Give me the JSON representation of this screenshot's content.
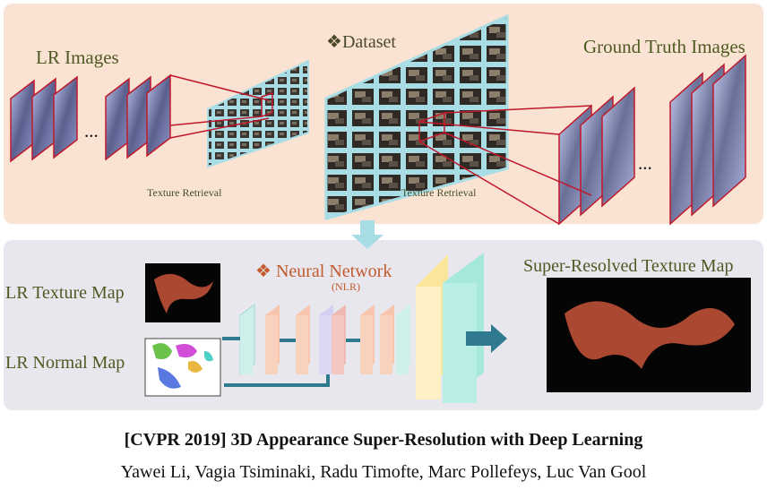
{
  "figure": {
    "dataset_label": "Dataset",
    "dataset_bullet": "❖",
    "lr_images_label": "LR Images",
    "ground_truth_label": "Ground Truth Images",
    "texture_retrieval_left": "Texture Retrieval",
    "texture_retrieval_right": "Texture Retrieval",
    "ellipsis": "...",
    "neural_network_label": "Neural Network",
    "neural_network_bullet": "❖",
    "neural_network_sub": "(NLR)",
    "lr_texture_map_label": "LR Texture Map",
    "lr_normal_map_label": "LR Normal Map",
    "super_resolved_label": "Super-Resolved Texture Map",
    "inner_ellipsis": "...",
    "colors": {
      "top_panel": "#fbe3d3",
      "bottom_panel": "#e9e7ee",
      "arrow": "#2f7a8f",
      "red_lines": "#c0182a",
      "cyan_frame": "#a8dde6"
    }
  },
  "paper": {
    "title": "[CVPR 2019] 3D Appearance Super-Resolution with Deep Learning",
    "authors": "Yawei Li, Vagia Tsiminaki, Radu Timofte, Marc Pollefeys, Luc Van Gool"
  }
}
